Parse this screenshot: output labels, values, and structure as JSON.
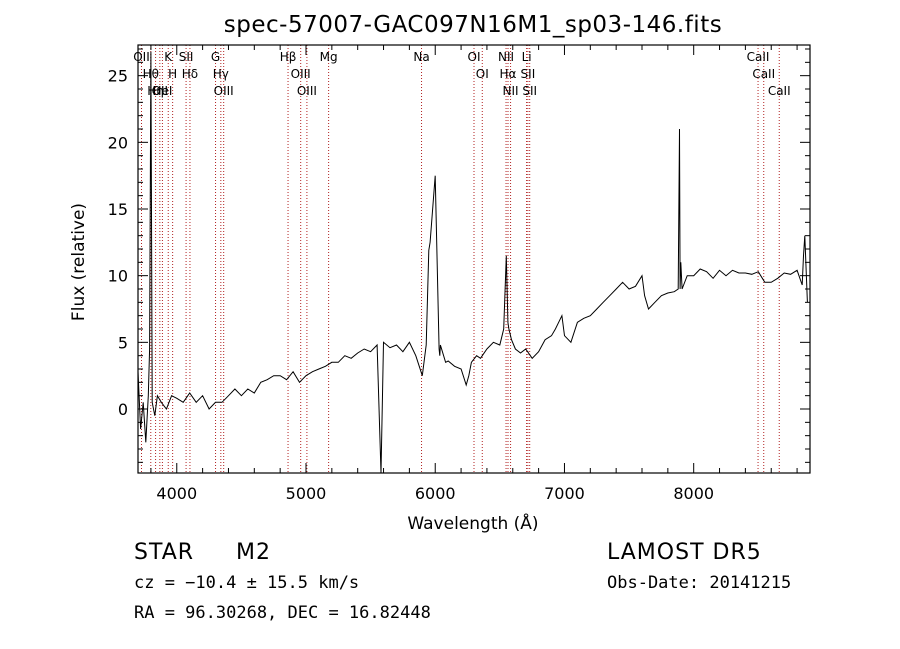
{
  "chart_data": {
    "type": "line",
    "title": "spec-57007-GAC097N16M1_sp03-146.fits",
    "xlabel": "Wavelength (Å)",
    "ylabel": "Flux (relative)",
    "xlim": [
      3700,
      8900
    ],
    "ylim": [
      -4.8,
      27.3
    ],
    "xticks": [
      4000,
      5000,
      6000,
      7000,
      8000
    ],
    "yticks": [
      0,
      5,
      10,
      15,
      20,
      25
    ],
    "grid": false,
    "line_color": "#000000",
    "marker_color": "#b22222",
    "series": [
      {
        "x": [
          3700,
          3720,
          3740,
          3760,
          3780,
          3790,
          3800,
          3810,
          3830,
          3850,
          3880,
          3920,
          3960,
          4000,
          4050,
          4100,
          4150,
          4200,
          4250,
          4300,
          4350,
          4400,
          4450,
          4500,
          4550,
          4600,
          4650,
          4700,
          4750,
          4800,
          4850,
          4900,
          4950,
          5000,
          5050,
          5100,
          5150,
          5200,
          5250,
          5300,
          5350,
          5400,
          5450,
          5500,
          5550,
          5580,
          5600,
          5650,
          5700,
          5750,
          5800,
          5850,
          5900,
          5930,
          5950,
          5960,
          6000,
          6030,
          6035,
          6040,
          6080,
          6100,
          6150,
          6200,
          6240,
          6260,
          6280,
          6320,
          6350,
          6400,
          6450,
          6500,
          6530,
          6550,
          6562,
          6570,
          6590,
          6620,
          6660,
          6700,
          6750,
          6800,
          6850,
          6900,
          6930,
          6950,
          6980,
          7000,
          7050,
          7100,
          7150,
          7200,
          7250,
          7300,
          7350,
          7400,
          7450,
          7500,
          7550,
          7600,
          7620,
          7650,
          7700,
          7750,
          7800,
          7850,
          7880,
          7890,
          7895,
          7900,
          7910,
          7950,
          8000,
          8050,
          8100,
          8150,
          8200,
          8250,
          8300,
          8350,
          8400,
          8450,
          8500,
          8550,
          8600,
          8650,
          8700,
          8750,
          8800,
          8840,
          8850,
          8860,
          8870,
          8880
        ],
        "y": [
          2.8,
          -1.5,
          0.5,
          -2.5,
          1.0,
          4.5,
          26.8,
          0.5,
          -0.5,
          1.0,
          0.5,
          0.0,
          1.0,
          0.8,
          0.5,
          1.2,
          0.5,
          1.0,
          0.0,
          0.5,
          0.5,
          1.0,
          1.5,
          1.0,
          1.5,
          1.2,
          2.0,
          2.2,
          2.5,
          2.5,
          2.2,
          2.8,
          2.0,
          2.5,
          2.8,
          3.0,
          3.2,
          3.5,
          3.5,
          4.0,
          3.8,
          4.2,
          4.5,
          4.3,
          4.8,
          -4.8,
          5.0,
          4.6,
          4.8,
          4.3,
          5.0,
          4.0,
          2.5,
          4.8,
          11.9,
          12.5,
          17.5,
          4.5,
          4.0,
          4.8,
          3.5,
          3.6,
          3.2,
          3.0,
          1.8,
          2.5,
          3.5,
          4.0,
          3.8,
          4.5,
          5.0,
          4.8,
          6.0,
          11.5,
          6.5,
          6.0,
          5.2,
          4.5,
          4.2,
          4.5,
          3.8,
          4.3,
          5.2,
          5.5,
          6.0,
          6.4,
          7.0,
          5.5,
          5.0,
          6.5,
          6.8,
          7.0,
          7.5,
          8.0,
          8.5,
          9.0,
          9.5,
          9.0,
          9.2,
          10.0,
          8.5,
          7.5,
          8.0,
          8.5,
          8.7,
          8.8,
          9.0,
          21.0,
          9.0,
          11.0,
          9.0,
          10.0,
          10.0,
          10.5,
          10.3,
          9.8,
          10.4,
          10.0,
          10.4,
          10.2,
          10.2,
          10.1,
          10.3,
          9.5,
          9.5,
          9.8,
          10.2,
          10.1,
          10.4,
          9.3,
          11.5,
          13.0,
          10.5,
          8.0
        ]
      }
    ],
    "lines": [
      {
        "x": 3727,
        "label": "OII"
      },
      {
        "x": 3799,
        "label": "Hθ"
      },
      {
        "x": 3836,
        "label": "Hη"
      },
      {
        "x": 3869,
        "label": "OII"
      },
      {
        "x": 3889,
        "label": "HeI"
      },
      {
        "x": 3934,
        "label": "K"
      },
      {
        "x": 3968,
        "label": "H"
      },
      {
        "x": 4072,
        "label": "SII"
      },
      {
        "x": 4102,
        "label": "Hδ"
      },
      {
        "x": 4300,
        "label": "G"
      },
      {
        "x": 4341,
        "label": "Hγ"
      },
      {
        "x": 4363,
        "label": "OIII"
      },
      {
        "x": 4861,
        "label": "Hβ"
      },
      {
        "x": 4959,
        "label": "OIII"
      },
      {
        "x": 5007,
        "label": "OIII"
      },
      {
        "x": 5175,
        "label": "Mg"
      },
      {
        "x": 5894,
        "label": "Na"
      },
      {
        "x": 6300,
        "label": "OI"
      },
      {
        "x": 6364,
        "label": "OI"
      },
      {
        "x": 6548,
        "label": "NII"
      },
      {
        "x": 6563,
        "label": "Hα"
      },
      {
        "x": 6583,
        "label": "NII"
      },
      {
        "x": 6707,
        "label": "Li"
      },
      {
        "x": 6717,
        "label": "SII"
      },
      {
        "x": 6731,
        "label": "SII"
      },
      {
        "x": 8498,
        "label": "CaII"
      },
      {
        "x": 8542,
        "label": "CaII"
      },
      {
        "x": 8662,
        "label": "CaII"
      }
    ]
  },
  "info": {
    "class": "STAR",
    "subclass": "M2",
    "survey": "LAMOST DR5",
    "cz": "cz = −10.4 ± 15.5 km/s",
    "obs_date": "Obs-Date: 20141215",
    "radec": "RA =  96.30268, DEC =  16.82448"
  }
}
